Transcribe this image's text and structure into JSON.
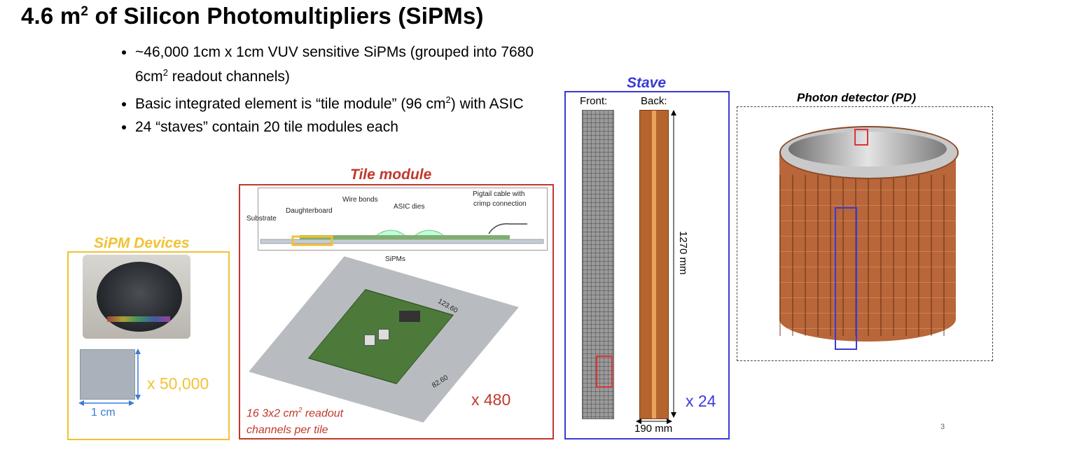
{
  "title": {
    "main": "4.6 m",
    "sup": "2",
    "rest": " of Silicon Photomultipliers (SiPMs)"
  },
  "bullets": [
    {
      "text": "~46,000 1cm x 1cm VUV sensitive SiPMs (grouped into 7680 6cm",
      "sup": "2",
      "tail": " readout channels)"
    },
    {
      "text": "Basic integrated element is “tile module” (96 cm",
      "sup": "2",
      "tail": ") with ASIC"
    },
    {
      "text": "24 “staves” contain 20 tile modules each",
      "sup": "",
      "tail": ""
    }
  ],
  "sipm_panel": {
    "label": "SiPM Devices",
    "multiplier": "x 50,000",
    "scale": "1 cm"
  },
  "tile_panel": {
    "label": "Tile module",
    "cross_section_labels": {
      "substrate": "Substrate",
      "daughterboard": "Daughterboard",
      "wire_bonds": "Wire bonds",
      "asic_dies": "ASIC dies",
      "pigtail": "Pigtail cable with",
      "crimp": "crimp connection",
      "sipms": "SiPMs"
    },
    "dim_long": "123.60",
    "dim_short": "82.60",
    "note_line1_a": "16 3x2 cm",
    "note_line1_sup": "2",
    "note_line1_b": " readout",
    "note_line2": "channels per tile",
    "multiplier": "x 480"
  },
  "stave_panel": {
    "label": "Stave",
    "front": "Front:",
    "back": "Back:",
    "length": "1270 mm",
    "width": "190 mm",
    "multiplier": "x 24"
  },
  "pd_panel": {
    "label": "Photon detector (PD)"
  },
  "page_number": "3",
  "colors": {
    "sipm": "#f1c232",
    "tile": "#c0392b",
    "stave": "#3a3ad9"
  }
}
